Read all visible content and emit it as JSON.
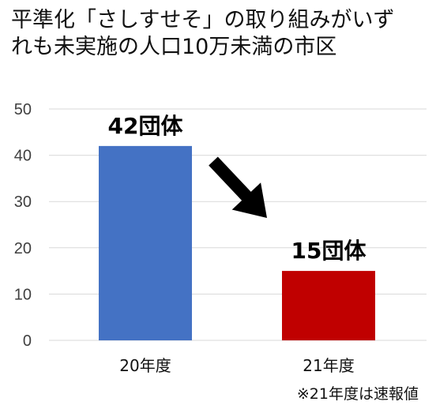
{
  "title_lines": [
    "平準化「さしすせそ」の取り組みがいず",
    "れも未実施の人口10万未満の市区"
  ],
  "note": "※21年度は速報値",
  "colors": {
    "bar_20": "#4472C4",
    "bar_21": "#C00000",
    "grid": "#d9d9d9",
    "axis_text": "#404040",
    "arrow": "#000000"
  },
  "chart_data": {
    "type": "bar",
    "title": "平準化「さしすせそ」の取り組みがいずれも未実施の人口10万未満の市区",
    "categories": [
      "20年度",
      "21年度"
    ],
    "values": [
      42,
      15
    ],
    "data_labels": [
      "42団体",
      "15団体"
    ],
    "yticks": [
      0,
      10,
      20,
      30,
      40,
      50
    ],
    "ylim": [
      0,
      50
    ],
    "grid": true,
    "legend": "none",
    "annotations": [
      "decreasing-arrow"
    ]
  }
}
